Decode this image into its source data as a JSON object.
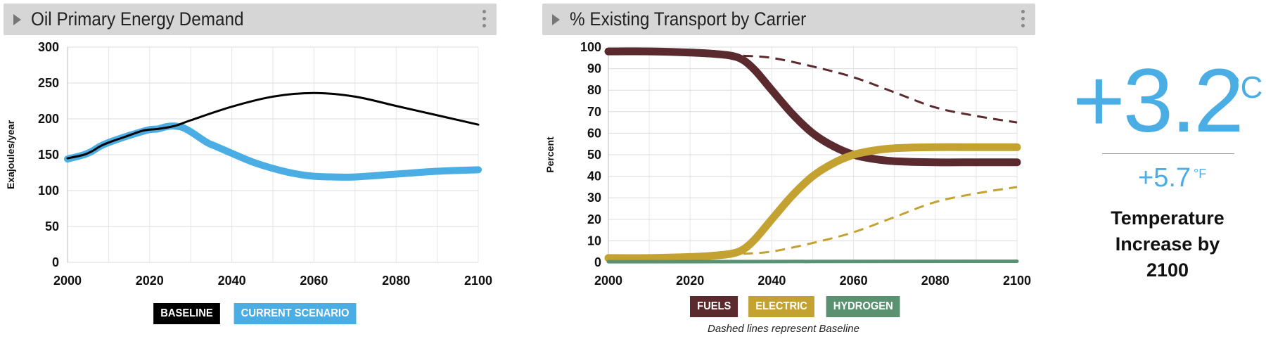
{
  "panels": [
    {
      "title": "Oil Primary Energy Demand"
    },
    {
      "title": "% Existing Transport by Carrier"
    }
  ],
  "colors": {
    "baseline": "#000000",
    "current_scenario": "#4aaee4",
    "fuels": "#5a2a2e",
    "electric": "#c4a232",
    "hydrogen": "#5a9171",
    "temperature": "#4aaee4"
  },
  "chart_data": [
    {
      "type": "line",
      "title": "Oil Primary Energy Demand",
      "xlabel": "",
      "ylabel": "Exajoules/year",
      "xlim": [
        2000,
        2100
      ],
      "ylim": [
        0,
        300
      ],
      "x_ticks": [
        2000,
        2020,
        2040,
        2060,
        2080,
        2100
      ],
      "y_ticks": [
        0,
        50,
        100,
        150,
        200,
        250,
        300
      ],
      "grid": true,
      "legend": "bottom",
      "series": [
        {
          "name": "BASELINE",
          "x": [
            2000,
            2004,
            2006,
            2008,
            2010,
            2014,
            2018,
            2020,
            2022,
            2026,
            2030,
            2040,
            2050,
            2060,
            2070,
            2080,
            2090,
            2100
          ],
          "values": [
            145,
            150,
            155,
            162,
            167,
            175,
            183,
            185,
            186,
            190,
            198,
            217,
            231,
            236,
            231,
            218,
            205,
            192
          ]
        },
        {
          "name": "CURRENT SCENARIO",
          "x": [
            2000,
            2004,
            2006,
            2008,
            2010,
            2014,
            2018,
            2020,
            2022,
            2024,
            2026,
            2028,
            2030,
            2034,
            2036,
            2040,
            2045,
            2050,
            2055,
            2060,
            2065,
            2070,
            2080,
            2090,
            2100
          ],
          "values": [
            144,
            150,
            155,
            162,
            167,
            175,
            182,
            185,
            186,
            189,
            190,
            188,
            182,
            167,
            162,
            152,
            140,
            131,
            124,
            120,
            119,
            119,
            123,
            127,
            129
          ]
        }
      ]
    },
    {
      "type": "line",
      "title": "% Existing Transport by Carrier",
      "xlabel": "",
      "ylabel": "Percent",
      "xlim": [
        2000,
        2100
      ],
      "ylim": [
        0,
        100
      ],
      "x_ticks": [
        2000,
        2020,
        2040,
        2060,
        2080,
        2100
      ],
      "y_ticks": [
        0,
        10,
        20,
        30,
        40,
        50,
        60,
        70,
        80,
        90,
        100
      ],
      "grid": true,
      "legend": "bottom",
      "note": "Dashed lines represent Baseline",
      "series": [
        {
          "name": "FUELS",
          "style": "solid",
          "x": [
            2000,
            2010,
            2020,
            2025,
            2030,
            2033,
            2036,
            2040,
            2045,
            2050,
            2055,
            2060,
            2065,
            2070,
            2080,
            2090,
            2100
          ],
          "values": [
            98,
            98,
            97.5,
            97,
            96,
            94,
            89,
            80,
            69,
            60,
            54,
            50,
            48,
            47,
            46.5,
            46.5,
            46.5
          ]
        },
        {
          "name": "ELECTRIC",
          "style": "solid",
          "x": [
            2000,
            2010,
            2020,
            2025,
            2030,
            2033,
            2036,
            2040,
            2045,
            2050,
            2055,
            2060,
            2065,
            2070,
            2080,
            2090,
            2100
          ],
          "values": [
            2,
            2,
            2.5,
            3,
            4,
            6,
            11,
            20,
            31,
            40,
            46,
            50,
            52,
            53,
            53.5,
            53.5,
            53.5
          ]
        },
        {
          "name": "HYDROGEN",
          "style": "solid",
          "x": [
            2000,
            2100
          ],
          "values": [
            0.3,
            0.5
          ]
        },
        {
          "name": "FUELS",
          "style": "dashed",
          "x": [
            2033,
            2040,
            2050,
            2060,
            2070,
            2080,
            2090,
            2100
          ],
          "values": [
            96,
            95,
            91,
            86,
            79,
            72,
            68,
            65
          ]
        },
        {
          "name": "ELECTRIC",
          "style": "dashed",
          "x": [
            2033,
            2040,
            2050,
            2060,
            2070,
            2080,
            2090,
            2100
          ],
          "values": [
            4,
            5,
            9,
            14,
            21,
            28,
            32,
            35
          ]
        }
      ]
    }
  ],
  "legend1": {
    "baseline": "BASELINE",
    "current": "CURRENT SCENARIO"
  },
  "legend2": {
    "fuels": "FUELS",
    "electric": "ELECTRIC",
    "hydrogen": "HYDROGEN"
  },
  "note": "Dashed lines represent Baseline",
  "temperature": {
    "celsius_value": "+3.2",
    "celsius_unit": "°C",
    "fahrenheit_value": "+5.7",
    "fahrenheit_unit": "°F",
    "label": "Temperature Increase by 2100"
  }
}
